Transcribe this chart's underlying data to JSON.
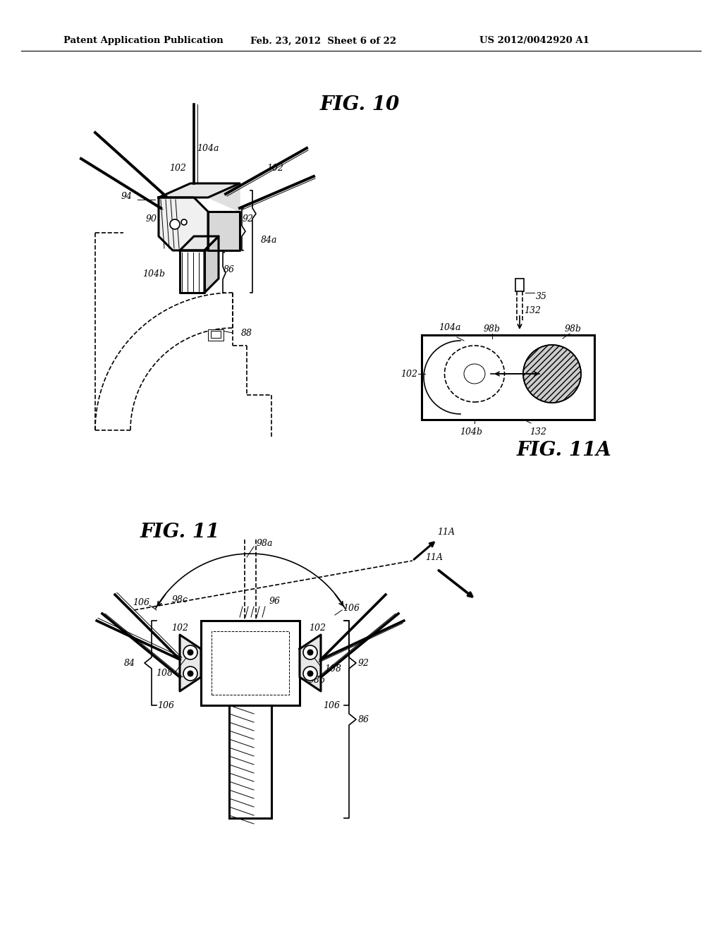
{
  "bg_color": "#ffffff",
  "header_text1": "Patent Application Publication",
  "header_text2": "Feb. 23, 2012  Sheet 6 of 22",
  "header_text3": "US 2012/0042920 A1",
  "fig10_title": "FIG. 10",
  "fig11_title": "FIG. 11",
  "fig11a_title": "FIG. 11A",
  "line_color": "#000000",
  "lw": 1.2,
  "lw_thick": 2.2,
  "lw_thin": 0.7
}
